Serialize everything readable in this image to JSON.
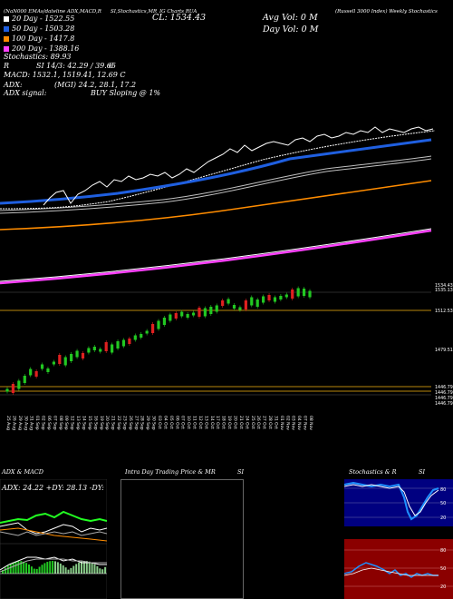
{
  "header": {
    "top_line_left": "(NaN000 EMAs/dateline ADX,MACD,R",
    "top_line_mid1": "SI,Stochastics,MR",
    "top_line_mid2": "IG Charts RUA",
    "top_line_right": "(Russell 3000 Index) Weekly Stochastics",
    "ema_items": [
      {
        "label": "20 Day - 1522.55",
        "color": "#ffffff"
      },
      {
        "label": "50 Day - 1503.28",
        "color": "#1f5fe0"
      },
      {
        "label": "100 Day - 1417.8",
        "color": "#ff8c00"
      },
      {
        "label": "200 Day - 1388.16",
        "color": "#ff40ff"
      }
    ],
    "cl_label": "CL: 1534.43",
    "avg_vol": "Avg Vol: 0   M",
    "day_vol": "Day Vol: 0   M",
    "stochastics_label": "Stochastics: 89.93",
    "r_line": "R",
    "r_values": "SI 14/3: 42.29 / 39.65",
    "r_extra": "6",
    "macd_line": "MACD: 1532.1, 1519.41, 12.69 C",
    "adx_label": "ADX:",
    "adx_values": "(MGI) 24.2, 28.1, 17.2",
    "adx_signal_label": "ADX  signal:",
    "adx_signal": "BUY Sloping @ 1%"
  },
  "price_labels": [
    "1534.43",
    "1535.13",
    "1512.53",
    "1479.51",
    "1446.79",
    "1446.79",
    "1446.79",
    "1446.79"
  ],
  "date_labels": [
    "25 Aug",
    "26 Aug",
    "29 Aug",
    "30 Aug",
    "31 Aug",
    "01 Sep",
    "02 Sep",
    "06 Sep",
    "07 Sep",
    "08 Sep",
    "09 Sep",
    "12 Sep",
    "13 Sep",
    "14 Sep",
    "15 Sep",
    "16 Sep",
    "19 Sep",
    "20 Sep",
    "21 Sep",
    "22 Sep",
    "23 Sep",
    "26 Sep",
    "27 Sep",
    "28 Sep",
    "29 Sep",
    "30 Sep",
    "03 Oct",
    "04 Oct",
    "05 Oct",
    "06 Oct",
    "07 Oct",
    "10 Oct",
    "11 Oct",
    "12 Oct",
    "13 Oct",
    "14 Oct",
    "17 Oct",
    "18 Oct",
    "19 Oct",
    "20 Oct",
    "21 Oct",
    "24 Oct",
    "25 Oct",
    "26 Oct",
    "27 Oct",
    "28 Oct",
    "31 Oct",
    "01 Nov",
    "02 Nov",
    "03 Nov",
    "04 Nov",
    "07 Nov",
    "08 Nov"
  ],
  "panels": {
    "adx_title": "ADX  & MACD",
    "adx_readout": "ADX: 24.22  +DY: 28.13 -DY: 17.16",
    "intra_title": "Intra  Day Trading Price  & MR",
    "intra_si": "SI",
    "stoch_title": "Stochastics & R",
    "stoch_si": "SI",
    "stoch_labels": [
      "80",
      "50",
      "20"
    ],
    "rsi_labels": [
      "80",
      "50",
      "20"
    ]
  },
  "colors": {
    "ema20": "#ffffff",
    "ema50": "#1f5fe0",
    "ema100": "#ff8c00",
    "ema200": "#ff40ff",
    "up": "#22c822",
    "down": "#e02020",
    "stoch_bg": "#000080",
    "rsi_bg": "#8b0000"
  }
}
